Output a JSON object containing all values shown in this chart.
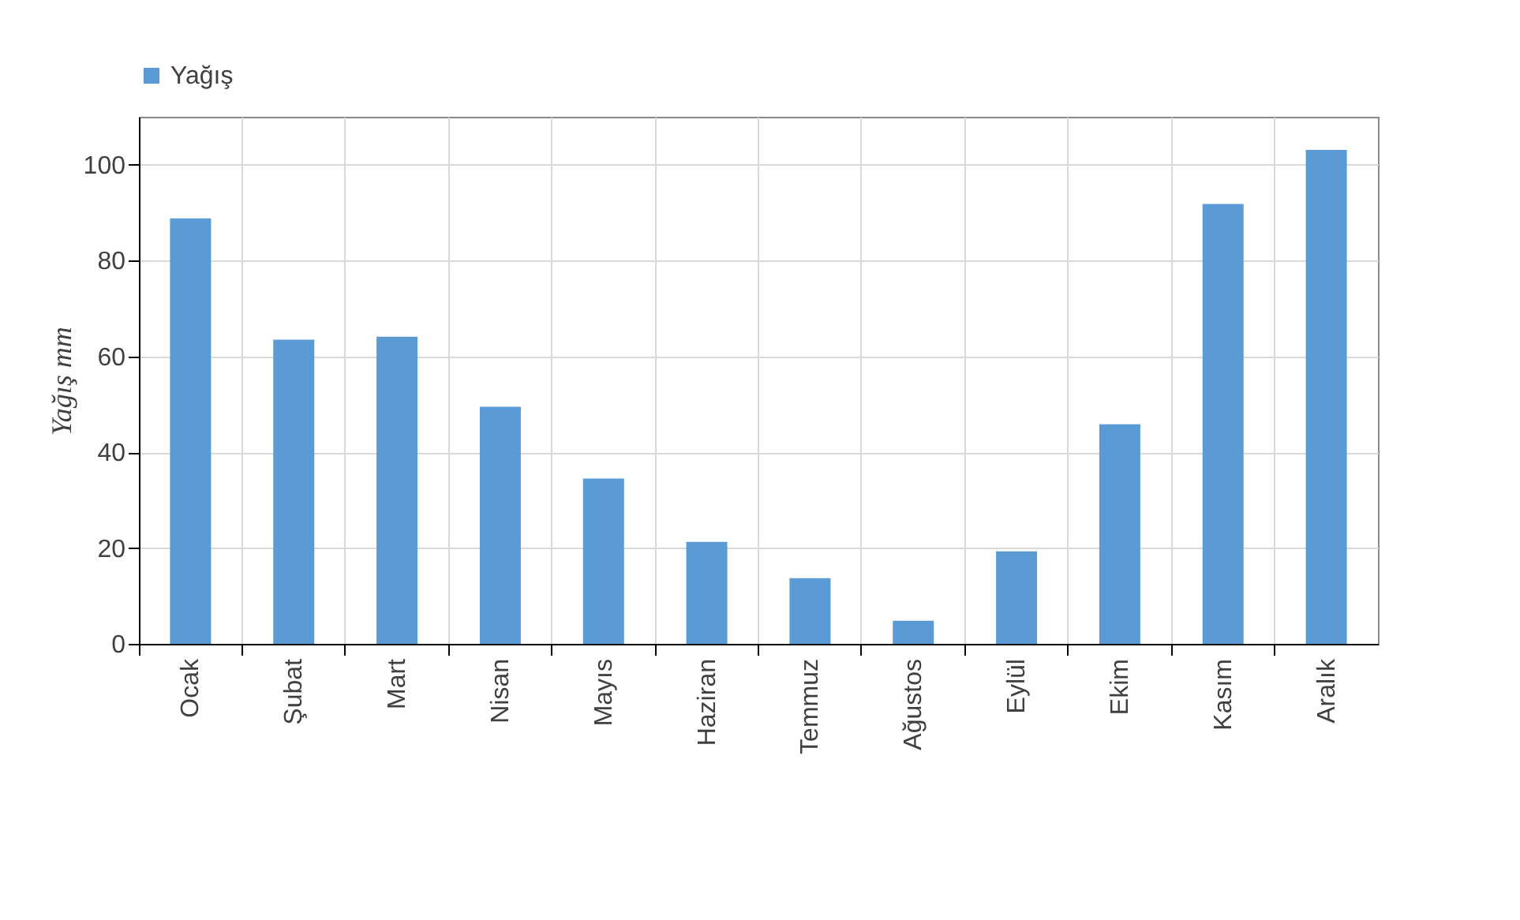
{
  "chart_data": {
    "type": "bar",
    "ylabel": "Yağış mm",
    "categories": [
      "Ocak",
      "Şubat",
      "Mart",
      "Nisan",
      "Mayıs",
      "Haziran",
      "Temmuz",
      "Ağustos",
      "Eylül",
      "Ekim",
      "Kasım",
      "Aralık"
    ],
    "series": [
      {
        "name": "Yağış",
        "color": "#5b9bd5",
        "values": [
          88.8,
          63.5,
          64.1,
          49.5,
          34.5,
          21.3,
          13.7,
          4.8,
          19.3,
          45.8,
          91.8,
          103.1
        ]
      }
    ],
    "ylim": [
      0,
      110
    ],
    "yticks": [
      0,
      20,
      40,
      60,
      80,
      100
    ],
    "grid": true,
    "legend": "top"
  }
}
